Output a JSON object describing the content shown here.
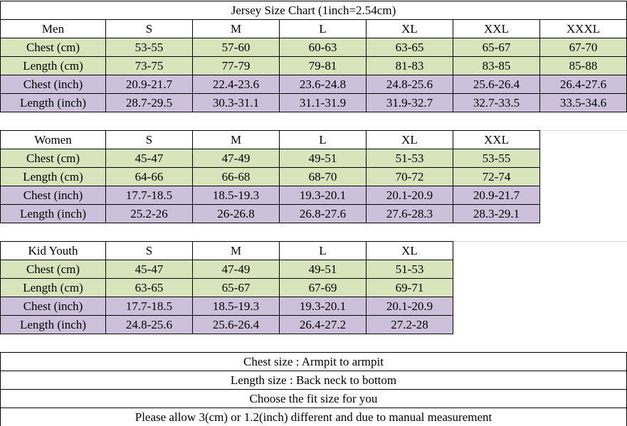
{
  "title": "Jersey Size Chart (1inch=2.54cm)",
  "tables": [
    {
      "header": [
        "Men",
        "S",
        "M",
        "L",
        "XL",
        "XXL",
        "XXXL"
      ],
      "rows": [
        [
          "Chest (cm)",
          "53-55",
          "57-60",
          "60-63",
          "63-65",
          "65-67",
          "67-70"
        ],
        [
          "Length (cm)",
          "73-75",
          "77-79",
          "79-81",
          "81-83",
          "83-85",
          "85-88"
        ],
        [
          "Chest (inch)",
          "20.9-21.7",
          "22.4-23.6",
          "23.6-24.8",
          "24.8-25.6",
          "25.6-26.4",
          "26.4-27.6"
        ],
        [
          "Length (inch)",
          "28.7-29.5",
          "30.3-31.1",
          "31.1-31.9",
          "31.9-32.7",
          "32.7-33.5",
          "33.5-34.6"
        ]
      ]
    },
    {
      "header": [
        "Women",
        "S",
        "M",
        "L",
        "XL",
        "XXL"
      ],
      "rows": [
        [
          "Chest (cm)",
          "45-47",
          "47-49",
          "49-51",
          "51-53",
          "53-55"
        ],
        [
          "Length (cm)",
          "64-66",
          "66-68",
          "68-70",
          "70-72",
          "72-74"
        ],
        [
          "Chest (inch)",
          "17.7-18.5",
          "18.5-19.3",
          "19.3-20.1",
          "20.1-20.9",
          "20.9-21.7"
        ],
        [
          "Length (inch)",
          "25.2-26",
          "26-26.8",
          "26.8-27.6",
          "27.6-28.3",
          "28.3-29.1"
        ]
      ]
    },
    {
      "header": [
        "Kid Youth",
        "S",
        "M",
        "L",
        "XL"
      ],
      "rows": [
        [
          "Chest (cm)",
          "45-47",
          "47-49",
          "49-51",
          "51-53"
        ],
        [
          "Length (cm)",
          "63-65",
          "65-67",
          "67-69",
          "69-71"
        ],
        [
          "Chest (inch)",
          "17.7-18.5",
          "18.5-19.3",
          "19.3-20.1",
          "20.1-20.9"
        ],
        [
          "Length (inch)",
          "24.8-25.6",
          "25.6-26.4",
          "26.4-27.2",
          "27.2-28"
        ]
      ]
    }
  ],
  "notes": [
    "Chest size : Armpit to armpit",
    "Length size : Back neck to bottom",
    "Choose the fit size for you",
    "Please allow 3(cm) or 1.2(inch) different and due to manual measurement"
  ]
}
